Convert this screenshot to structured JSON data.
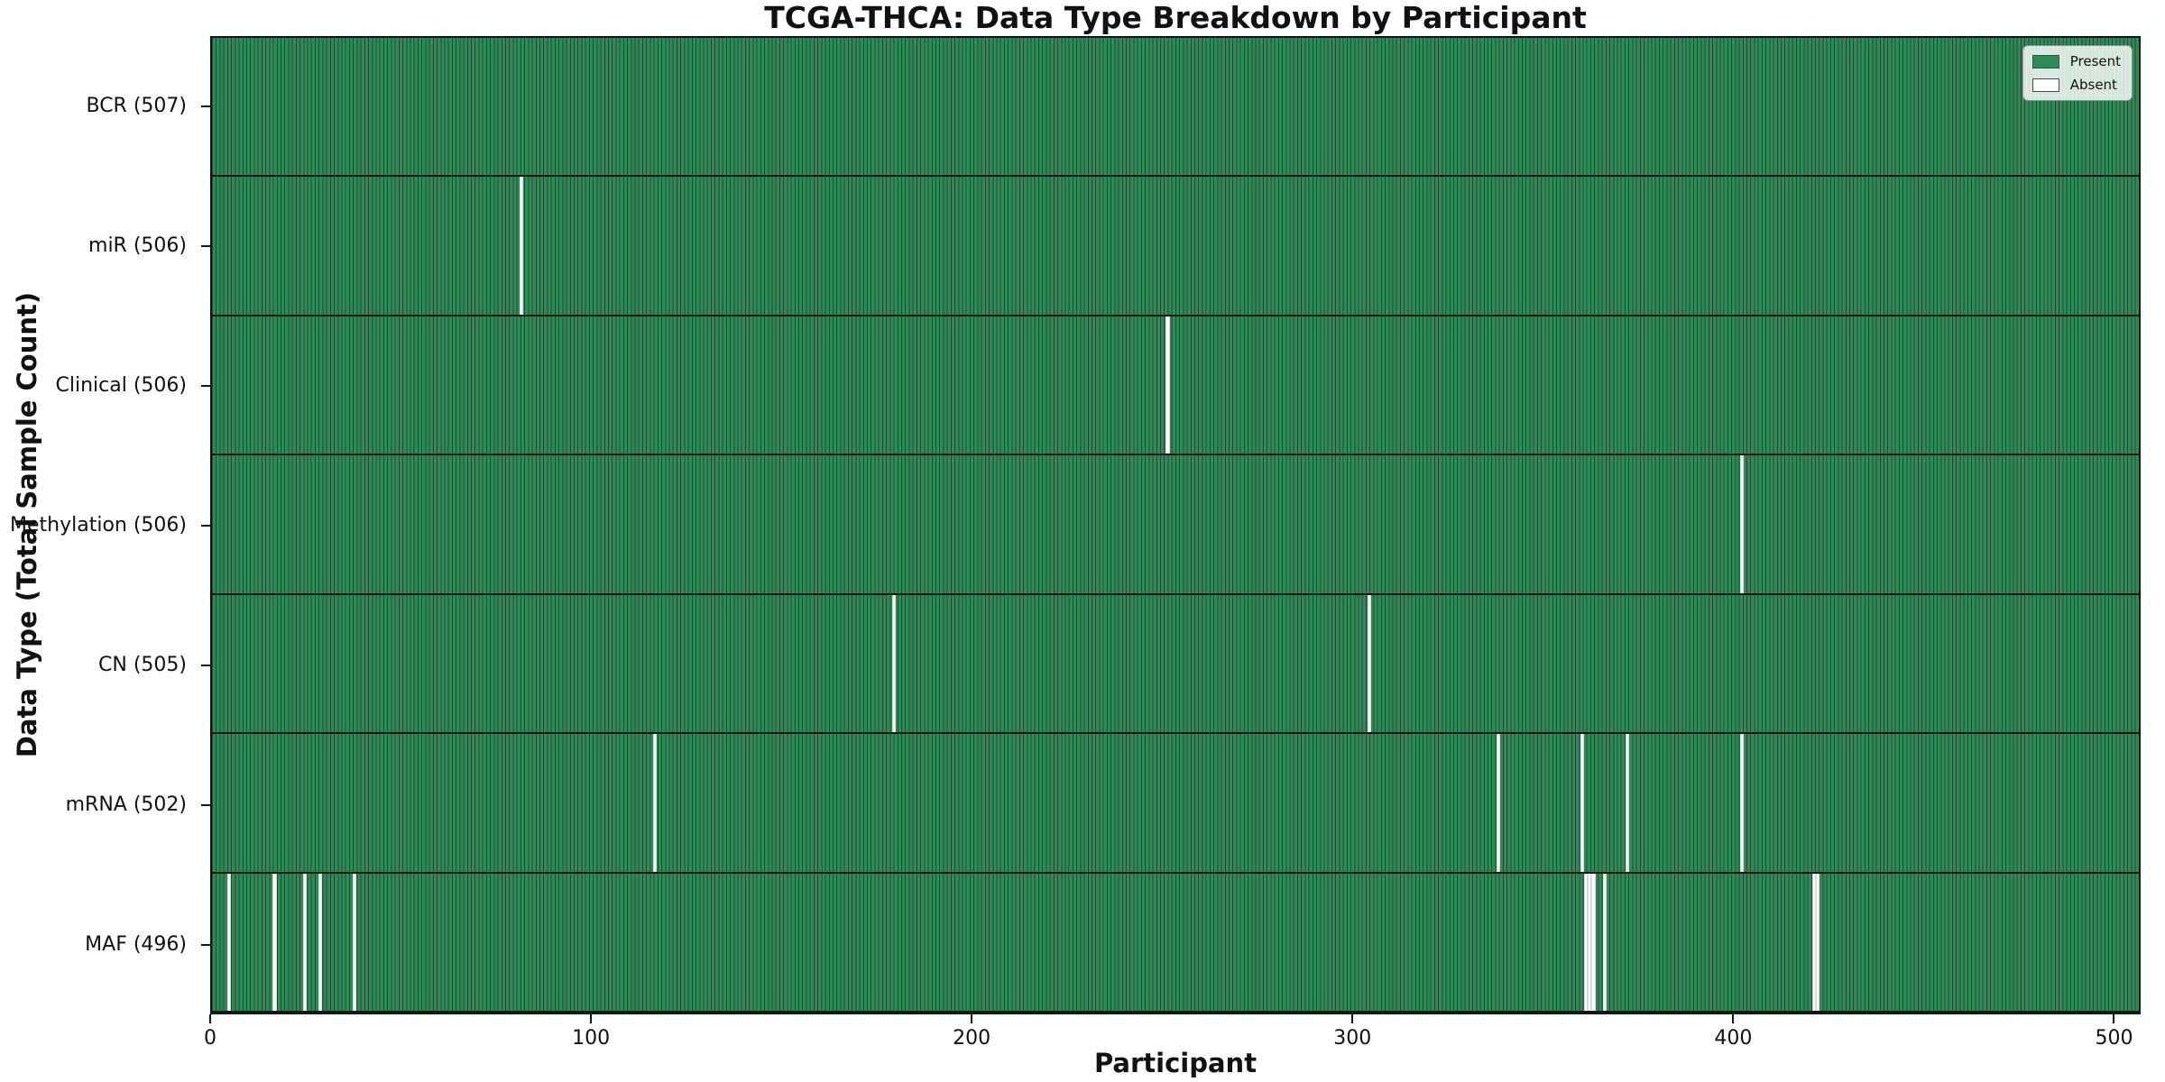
{
  "title": "TCGA-THCA: Data Type Breakdown by Participant",
  "legend": {
    "entries": [
      {
        "label": "Present",
        "color": "#2e8b57"
      },
      {
        "label": "Absent",
        "color": "#ffffff"
      }
    ]
  },
  "colors": {
    "present_green": "#2e8b57",
    "bar_edge_dark": "#1d4c31",
    "absent_white": "#ffffff",
    "axis_and_separators": "#141414"
  },
  "chart_data": {
    "type": "heatmap",
    "title": "TCGA-THCA: Data Type Breakdown by Participant",
    "xlabel": "Participant",
    "ylabel": "Data Type (Total Sample Count)",
    "legend": [
      "Present",
      "Absent"
    ],
    "legend_position": "upper right",
    "grid": false,
    "n_participants": 507,
    "x_axis_range": [
      0,
      507
    ],
    "x_ticks": [
      0,
      100,
      200,
      300,
      400,
      500
    ],
    "rows": [
      {
        "label": "BCR (507)",
        "data_type": "BCR",
        "present_count": 507,
        "absent_participants": []
      },
      {
        "label": "miR (506)",
        "data_type": "miR",
        "present_count": 506,
        "absent_participants": [
          81
        ]
      },
      {
        "label": "Clinical (506)",
        "data_type": "Clinical",
        "present_count": 506,
        "absent_participants": [
          251
        ]
      },
      {
        "label": "Methylation (506)",
        "data_type": "Methylation",
        "present_count": 506,
        "absent_participants": [
          402
        ]
      },
      {
        "label": "CN (505)",
        "data_type": "CN",
        "present_count": 505,
        "absent_participants": [
          179,
          304
        ]
      },
      {
        "label": "mRNA (502)",
        "data_type": "mRNA",
        "present_count": 502,
        "absent_participants": [
          116,
          338,
          360,
          372,
          402
        ]
      },
      {
        "label": "MAF (496)",
        "data_type": "MAF",
        "present_count": 496,
        "absent_participants": [
          4,
          16,
          24,
          28,
          37,
          361,
          362,
          363,
          366,
          421,
          422
        ]
      }
    ]
  }
}
